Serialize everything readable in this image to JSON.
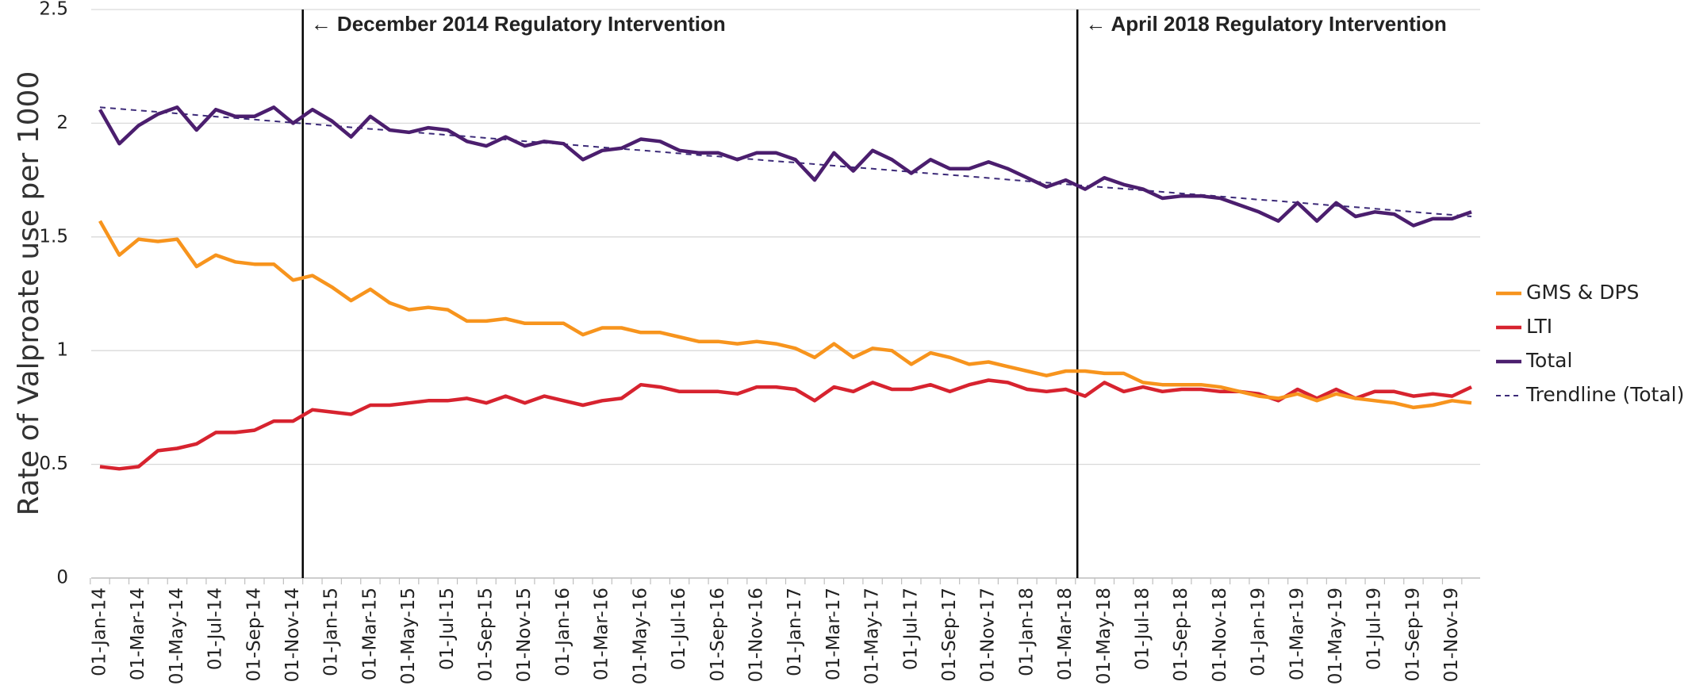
{
  "chart_data": {
    "type": "line",
    "y_label": "Rate of Valproate use per 1000",
    "annotations": [
      "← December 2014 Regulatory Intervention",
      "← April 2018 Regulatory Intervention"
    ],
    "categories": [
      "01-Jan-14",
      null,
      "01-Mar-14",
      null,
      "01-May-14",
      null,
      "01-Jul-14",
      null,
      "01-Sep-14",
      null,
      "01-Nov-14",
      null,
      "01-Jan-15",
      null,
      "01-Mar-15",
      null,
      "01-May-15",
      null,
      "01-Jul-15",
      null,
      "01-Sep-15",
      null,
      "01-Nov-15",
      null,
      "01-Jan-16",
      null,
      "01-Mar-16",
      null,
      "01-May-16",
      null,
      "01-Jul-16",
      null,
      "01-Sep-16",
      null,
      "01-Nov-16",
      null,
      "01-Jan-17",
      null,
      "01-Mar-17",
      null,
      "01-May-17",
      null,
      "01-Jul-17",
      null,
      "01-Sep-17",
      null,
      "01-Nov-17",
      null,
      "01-Jan-18",
      null,
      "01-Mar-18",
      null,
      "01-May-18",
      null,
      "01-Jul-18",
      null,
      "01-Sep-18",
      null,
      "01-Nov-18",
      null,
      "01-Jan-19",
      null,
      "01-Mar-19",
      null,
      "01-May-19",
      null,
      "01-Jul-19",
      null,
      "01-Sep-19",
      null,
      "01-Nov-19",
      null
    ],
    "ylim": [
      0,
      2.5
    ],
    "yticks": [
      0,
      0.5,
      1,
      1.5,
      2,
      2.5
    ],
    "grid": true,
    "legend": "right",
    "series": [
      {
        "name": "GMS & DPS",
        "color": "#f7941d",
        "values": [
          1.57,
          1.42,
          1.49,
          1.48,
          1.49,
          1.37,
          1.42,
          1.39,
          1.38,
          1.38,
          1.31,
          1.33,
          1.28,
          1.22,
          1.27,
          1.21,
          1.18,
          1.19,
          1.18,
          1.13,
          1.13,
          1.14,
          1.12,
          1.12,
          1.12,
          1.07,
          1.1,
          1.1,
          1.08,
          1.08,
          1.06,
          1.04,
          1.04,
          1.03,
          1.04,
          1.03,
          1.01,
          0.97,
          1.03,
          0.97,
          1.01,
          1.0,
          0.94,
          0.99,
          0.97,
          0.94,
          0.95,
          0.93,
          0.91,
          0.89,
          0.91,
          0.91,
          0.9,
          0.9,
          0.86,
          0.85,
          0.85,
          0.85,
          0.84,
          0.82,
          0.8,
          0.79,
          0.81,
          0.78,
          0.81,
          0.79,
          0.78,
          0.77,
          0.75,
          0.76,
          0.78,
          0.77
        ]
      },
      {
        "name": "LTI",
        "color": "#d7232f",
        "values": [
          0.49,
          0.48,
          0.49,
          0.56,
          0.57,
          0.59,
          0.64,
          0.64,
          0.65,
          0.69,
          0.69,
          0.74,
          0.73,
          0.72,
          0.76,
          0.76,
          0.77,
          0.78,
          0.78,
          0.79,
          0.77,
          0.8,
          0.77,
          0.8,
          0.78,
          0.76,
          0.78,
          0.79,
          0.85,
          0.84,
          0.82,
          0.82,
          0.82,
          0.81,
          0.84,
          0.84,
          0.83,
          0.78,
          0.84,
          0.82,
          0.86,
          0.83,
          0.83,
          0.85,
          0.82,
          0.85,
          0.87,
          0.86,
          0.83,
          0.82,
          0.83,
          0.8,
          0.86,
          0.82,
          0.84,
          0.82,
          0.83,
          0.83,
          0.82,
          0.82,
          0.81,
          0.78,
          0.83,
          0.79,
          0.83,
          0.79,
          0.82,
          0.82,
          0.8,
          0.81,
          0.8,
          0.84
        ]
      },
      {
        "name": "Total",
        "color": "#4b1e6e",
        "values": [
          2.06,
          1.91,
          1.99,
          2.04,
          2.07,
          1.97,
          2.06,
          2.03,
          2.03,
          2.07,
          2.0,
          2.06,
          2.01,
          1.94,
          2.03,
          1.97,
          1.96,
          1.98,
          1.97,
          1.92,
          1.9,
          1.94,
          1.9,
          1.92,
          1.91,
          1.84,
          1.88,
          1.89,
          1.93,
          1.92,
          1.88,
          1.87,
          1.87,
          1.84,
          1.87,
          1.87,
          1.84,
          1.75,
          1.87,
          1.79,
          1.88,
          1.84,
          1.78,
          1.84,
          1.8,
          1.8,
          1.83,
          1.8,
          1.76,
          1.72,
          1.75,
          1.71,
          1.76,
          1.73,
          1.71,
          1.67,
          1.68,
          1.68,
          1.67,
          1.64,
          1.61,
          1.57,
          1.65,
          1.57,
          1.65,
          1.59,
          1.61,
          1.6,
          1.55,
          1.58,
          1.58,
          1.61
        ]
      },
      {
        "name": "Trendline (Total)",
        "color": "#3c2a78",
        "dashed": true,
        "values": [
          2.07,
          2.063,
          2.056,
          2.05,
          2.043,
          2.036,
          2.029,
          2.023,
          2.016,
          2.009,
          2.002,
          1.996,
          1.989,
          1.982,
          1.975,
          1.969,
          1.962,
          1.955,
          1.948,
          1.942,
          1.935,
          1.928,
          1.921,
          1.914,
          1.908,
          1.901,
          1.894,
          1.887,
          1.881,
          1.874,
          1.867,
          1.86,
          1.854,
          1.847,
          1.84,
          1.833,
          1.827,
          1.82,
          1.813,
          1.806,
          1.8,
          1.793,
          1.786,
          1.779,
          1.773,
          1.766,
          1.759,
          1.752,
          1.745,
          1.739,
          1.732,
          1.725,
          1.718,
          1.712,
          1.705,
          1.698,
          1.691,
          1.685,
          1.678,
          1.671,
          1.664,
          1.658,
          1.651,
          1.644,
          1.637,
          1.631,
          1.624,
          1.617,
          1.61,
          1.603,
          1.597,
          1.59
        ]
      }
    ]
  }
}
